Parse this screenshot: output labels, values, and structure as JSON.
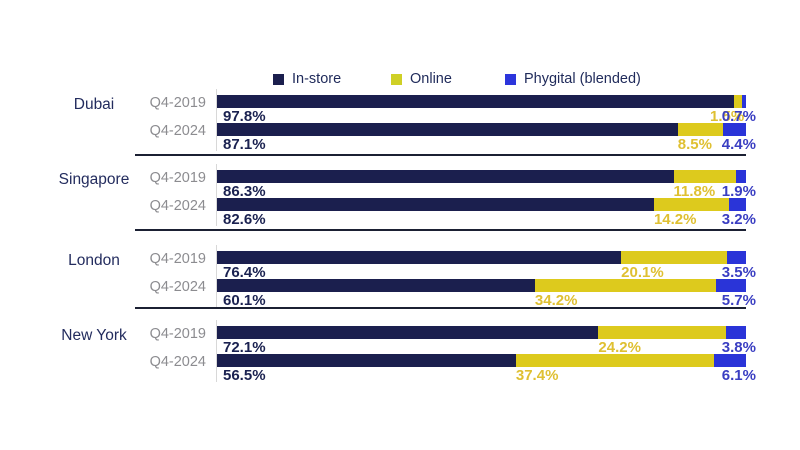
{
  "legend": {
    "items": [
      {
        "label": "In-store",
        "color": "#1b1f4e"
      },
      {
        "label": "Online",
        "color": "#cfd026"
      },
      {
        "label": "Phygital (blended)",
        "color": "#2c35dc"
      }
    ]
  },
  "chart_data": {
    "type": "bar",
    "variant": "horizontal-stacked",
    "unit": "%",
    "xlim": [
      0,
      100
    ],
    "grid": false,
    "legend_position": "top",
    "series": [
      "In-store",
      "Online",
      "Phygital (blended)"
    ],
    "bar_colors": {
      "in_store": "#1b1f4e",
      "online": "#ddca1d",
      "phygital": "#2a34d8"
    },
    "label_colors": {
      "in_store": "#1a2150",
      "online": "#dfc032",
      "phygital": "#3a3ec2"
    },
    "groups": [
      {
        "city": "Dubai",
        "rows": [
          {
            "period": "Q4-2019",
            "values": [
              97.8,
              1.5,
              0.7
            ]
          },
          {
            "period": "Q4-2024",
            "values": [
              87.1,
              8.5,
              4.4
            ]
          }
        ]
      },
      {
        "city": "Singapore",
        "rows": [
          {
            "period": "Q4-2019",
            "values": [
              86.3,
              11.8,
              1.9
            ]
          },
          {
            "period": "Q4-2024",
            "values": [
              82.6,
              14.2,
              3.2
            ]
          }
        ]
      },
      {
        "city": "London",
        "rows": [
          {
            "period": "Q4-2019",
            "values": [
              76.4,
              20.1,
              3.5
            ]
          },
          {
            "period": "Q4-2024",
            "values": [
              60.1,
              34.2,
              5.7
            ]
          }
        ]
      },
      {
        "city": "New York",
        "rows": [
          {
            "period": "Q4-2019",
            "values": [
              72.1,
              24.2,
              3.8
            ]
          },
          {
            "period": "Q4-2024",
            "values": [
              56.5,
              37.4,
              6.1
            ]
          }
        ]
      }
    ]
  }
}
